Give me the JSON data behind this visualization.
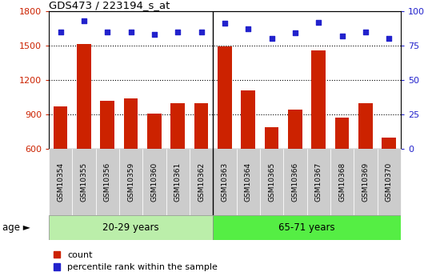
{
  "title": "GDS473 / 223194_s_at",
  "samples": [
    "GSM10354",
    "GSM10355",
    "GSM10356",
    "GSM10359",
    "GSM10360",
    "GSM10361",
    "GSM10362",
    "GSM10363",
    "GSM10364",
    "GSM10365",
    "GSM10366",
    "GSM10367",
    "GSM10368",
    "GSM10369",
    "GSM10370"
  ],
  "counts": [
    970,
    1510,
    1020,
    1040,
    905,
    1000,
    1000,
    1490,
    1110,
    790,
    940,
    1460,
    870,
    1000,
    700
  ],
  "percentile_ranks": [
    85,
    93,
    85,
    85,
    83,
    85,
    85,
    91,
    87,
    80,
    84,
    92,
    82,
    85,
    80
  ],
  "group1_label": "20-29 years",
  "group2_label": "65-71 years",
  "group1_count": 7,
  "group2_count": 8,
  "ylim_left": [
    600,
    1800
  ],
  "ylim_right": [
    0,
    100
  ],
  "yticks_left": [
    600,
    900,
    1200,
    1500,
    1800
  ],
  "yticks_right": [
    0,
    25,
    50,
    75,
    100
  ],
  "bar_color": "#cc2200",
  "dot_color": "#2222cc",
  "group1_color": "#bbeeaa",
  "group2_color": "#55ee44",
  "tick_bg_color": "#cccccc",
  "legend_count_label": "count",
  "legend_pct_label": "percentile rank within the sample",
  "age_label": "age"
}
